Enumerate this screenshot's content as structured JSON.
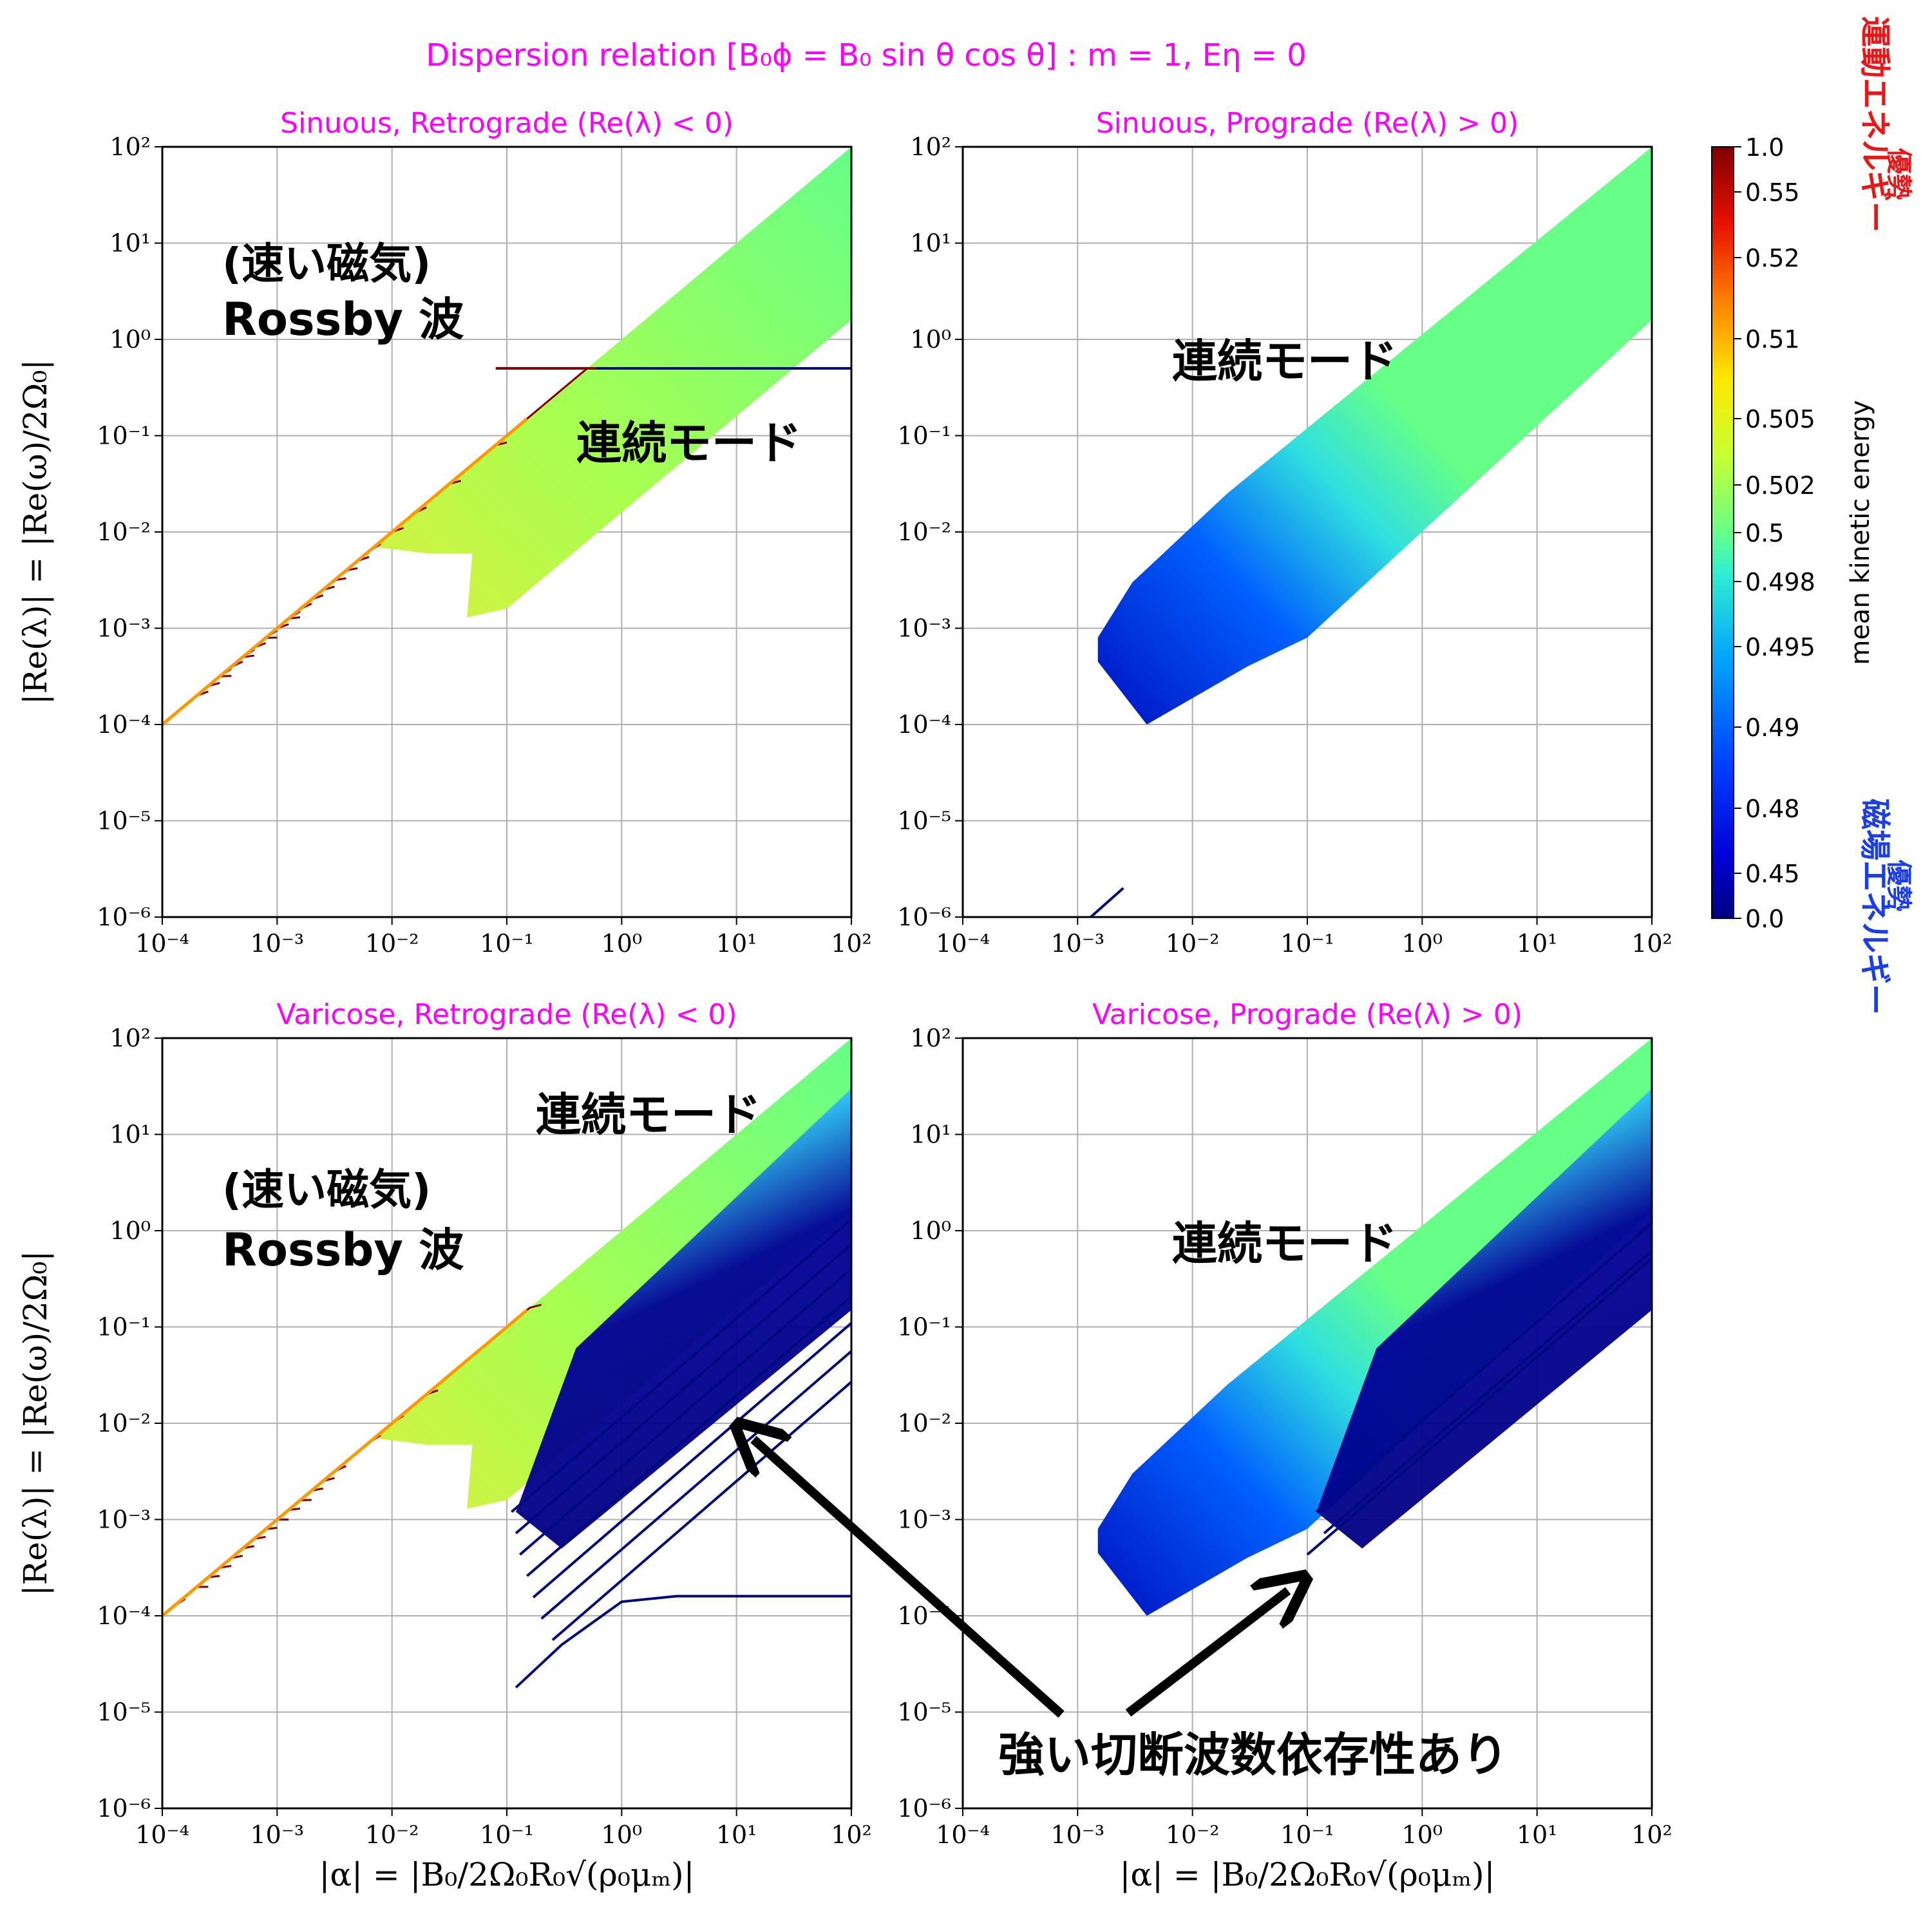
{
  "suptitle": "Dispersion relation [B₀ϕ = B₀ sin θ cos θ] : m = 1, Eη = 0",
  "colors": {
    "title": "#ff00ff",
    "kinetic": "#e81818",
    "magnetic": "#1a3fe6",
    "retro_lines": "#7f0000",
    "blue_lines": "#000a80",
    "continuum_top": "#66ff88"
  },
  "x_axis_label": "|α| = |B₀/2Ω₀R₀√(ρ₀μₘ)|",
  "y_axis_label": "|Re(λ)| = |Re(ω)/2Ω₀|",
  "x_ticks": [
    "10⁻⁴",
    "10⁻³",
    "10⁻²",
    "10⁻¹",
    "10⁰",
    "10¹",
    "10²"
  ],
  "y_ticks": [
    "10²",
    "10¹",
    "10⁰",
    "10⁻¹",
    "10⁻²",
    "10⁻³",
    "10⁻⁴",
    "10⁻⁵",
    "10⁻⁶"
  ],
  "colorbar": {
    "label": "mean kinetic energy",
    "ticks": [
      "1.0",
      "0.55",
      "0.52",
      "0.51",
      "0.505",
      "0.502",
      "0.5",
      "0.498",
      "0.495",
      "0.49",
      "0.48",
      "0.45",
      "0.0"
    ],
    "top_note_line1": "運動エネルギー",
    "top_note_line2": "優勢",
    "bottom_note_line1": "磁場エネルギー",
    "bottom_note_line2": "優勢"
  },
  "annotations": {
    "rossby_line1": "(速い磁気)",
    "rossby_line2": "Rossby 波",
    "continuum": "連続モード",
    "cutoff": "強い切断波数依存性あり"
  },
  "chart_data": [
    {
      "type": "line",
      "title": "Sinuous, Retrograde (Re(λ) < 0)",
      "xscale": "log",
      "yscale": "log",
      "xlim": [
        0.0001,
        100
      ],
      "ylim": [
        1e-06,
        100
      ],
      "grid": true,
      "series": [
        {
          "plateaus": [
            0.5,
            0.085,
            0.034,
            0.018,
            0.011,
            0.0075,
            0.0055,
            0.0042,
            0.0033,
            0.0027,
            0.0022,
            0.0018,
            0.0015,
            0.0013,
            0.0011,
            0.00095,
            0.0008,
            0.0007,
            0.0006,
            0.00052,
            0.00045,
            0.00038,
            0.00032,
            0.00027,
            0.00022
          ],
          "color": "dark red"
        },
        {
          "continuum_band_alpha": [
            0.007,
            100
          ],
          "lower_edge_at_alpha_0_1": 0.0013,
          "upper_edge_at_alpha_100": 100
        }
      ],
      "rossby_plateau_blue_branch": {
        "value": 0.5,
        "alpha_range": [
          0.6,
          100
        ]
      }
    },
    {
      "type": "line",
      "title": "Sinuous, Prograde (Re(λ) > 0)",
      "xscale": "log",
      "yscale": "log",
      "xlim": [
        0.0001,
        100
      ],
      "ylim": [
        1e-06,
        100
      ],
      "grid": true,
      "series": [
        {
          "continuum_band_alpha": [
            0.0015,
            100
          ],
          "min_at": [
            0.0015,
            0.0004
          ],
          "upper_edge_at_alpha_100": 100
        },
        {
          "blue_segment": {
            "x": [
              0.0013,
              0.0025
            ],
            "y": [
              1e-06,
              2e-06
            ]
          }
        }
      ]
    },
    {
      "type": "line",
      "title": "Varicose, Retrograde (Re(λ) < 0)",
      "xscale": "log",
      "yscale": "log",
      "xlim": [
        0.0001,
        100
      ],
      "ylim": [
        1e-06,
        100
      ],
      "grid": true,
      "series": [
        {
          "plateaus": [
            0.17,
            0.05,
            0.022,
            0.012,
            0.0075,
            0.005,
            0.0036,
            0.0027,
            0.0021,
            0.0016,
            0.0013,
            0.001,
            0.00082,
            0.00066,
            0.00053,
            0.00042,
            0.00033,
            0.00026,
            0.0002,
            0.00015
          ],
          "color": "dark red"
        },
        {
          "blue_curve": {
            "x": [
              0.12,
              0.3,
              1,
              3,
              100
            ],
            "y": [
              1.8e-05,
              5e-05,
              0.00014,
              0.00016,
              0.00016
            ]
          }
        }
      ]
    },
    {
      "type": "line",
      "title": "Varicose, Prograde (Re(λ) > 0)",
      "xscale": "log",
      "yscale": "log",
      "xlim": [
        0.0001,
        100
      ],
      "ylim": [
        1e-06,
        100
      ],
      "grid": true,
      "series": [
        {
          "continuum_band_alpha": [
            0.0015,
            100
          ],
          "min_at": [
            0.0015,
            0.0004
          ],
          "upper_edge_at_alpha_100": 100
        }
      ]
    }
  ]
}
